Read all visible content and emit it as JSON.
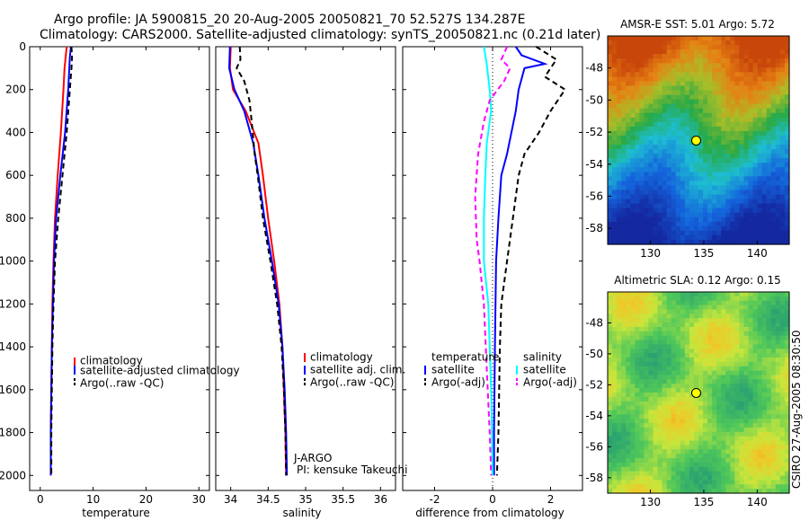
{
  "header": {
    "title_line1": "Argo profile: JA 5900815_20 20-Aug-2005 20050821_70 52.527S 134.287E",
    "title_line2": "Climatology: CARS2000. Satellite-adjusted climatology: synTS_20050821.nc (0.21d later)"
  },
  "footer": {
    "credit": "CSIRO 27-Aug-2005 08:30:50"
  },
  "colors": {
    "climatology": "#ff0000",
    "satellite": "#0000ff",
    "argo": "#000000",
    "temp_diff_adj": "#000000",
    "sal_diff_sat": "#00ffff",
    "sal_diff_argo": "#ff00ff",
    "float_marker": "#ffff00"
  },
  "chart_data": [
    {
      "type": "line",
      "name": "temperature",
      "xlabel": "temperature",
      "ylabel": "",
      "xlim": [
        -2,
        32
      ],
      "ylim": [
        0,
        2070
      ],
      "y_reversed": true,
      "xticks": [
        "0",
        "10",
        "20",
        "30"
      ],
      "yticks": [
        "0",
        "200",
        "400",
        "600",
        "800",
        "1000",
        "1200",
        "1400",
        "1600",
        "1800",
        "2000"
      ],
      "legend": [
        "climatology",
        "satellite-adjusted climatology",
        "Argo(..raw -QC)"
      ],
      "series": [
        {
          "key": "climatology",
          "style": "solid",
          "points": [
            [
              5.0,
              0
            ],
            [
              4.8,
              50
            ],
            [
              4.6,
              100
            ],
            [
              4.4,
              200
            ],
            [
              3.9,
              400
            ],
            [
              3.3,
              600
            ],
            [
              2.8,
              800
            ],
            [
              2.5,
              1000
            ],
            [
              2.3,
              1200
            ],
            [
              2.2,
              1400
            ],
            [
              2.1,
              1600
            ],
            [
              2.0,
              1800
            ],
            [
              2.0,
              2000
            ]
          ]
        },
        {
          "key": "satellite",
          "style": "solid",
          "points": [
            [
              5.8,
              0
            ],
            [
              5.6,
              50
            ],
            [
              5.5,
              100
            ],
            [
              5.3,
              200
            ],
            [
              4.7,
              400
            ],
            [
              3.8,
              600
            ],
            [
              3.0,
              800
            ],
            [
              2.6,
              1000
            ],
            [
              2.4,
              1200
            ],
            [
              2.2,
              1400
            ],
            [
              2.1,
              1600
            ],
            [
              2.0,
              1800
            ],
            [
              2.0,
              2000
            ]
          ]
        },
        {
          "key": "argo",
          "style": "dashed",
          "points": [
            [
              5.9,
              0
            ],
            [
              6.0,
              50
            ],
            [
              5.9,
              100
            ],
            [
              5.6,
              200
            ],
            [
              5.0,
              400
            ],
            [
              4.2,
              600
            ],
            [
              3.4,
              800
            ],
            [
              2.8,
              1000
            ],
            [
              2.5,
              1200
            ],
            [
              2.3,
              1400
            ],
            [
              2.2,
              1600
            ],
            [
              2.1,
              1800
            ],
            [
              2.1,
              2000
            ]
          ]
        }
      ]
    },
    {
      "type": "line",
      "name": "salinity",
      "xlabel": "salinity",
      "ylabel": "",
      "xlim": [
        33.8,
        36.2
      ],
      "ylim": [
        0,
        2070
      ],
      "y_reversed": true,
      "xticks": [
        "34",
        "34.5",
        "35",
        "35.5",
        "36"
      ],
      "legend": [
        "climatology",
        "satellite adj. clim.",
        "Argo(..raw -QC)"
      ],
      "annotation_line1": "J-ARGO",
      "annotation_line2": "PI: kensuke Takeuchi",
      "series": [
        {
          "key": "climatology",
          "style": "solid",
          "points": [
            [
              34.0,
              0
            ],
            [
              33.99,
              100
            ],
            [
              34.03,
              200
            ],
            [
              34.2,
              300
            ],
            [
              34.37,
              450
            ],
            [
              34.43,
              600
            ],
            [
              34.5,
              800
            ],
            [
              34.58,
              1000
            ],
            [
              34.65,
              1200
            ],
            [
              34.69,
              1400
            ],
            [
              34.71,
              1600
            ],
            [
              34.73,
              1800
            ],
            [
              34.74,
              2000
            ]
          ]
        },
        {
          "key": "satellite",
          "style": "solid",
          "points": [
            [
              33.99,
              0
            ],
            [
              33.98,
              100
            ],
            [
              34.05,
              200
            ],
            [
              34.18,
              300
            ],
            [
              34.3,
              450
            ],
            [
              34.37,
              600
            ],
            [
              34.45,
              800
            ],
            [
              34.55,
              1000
            ],
            [
              34.64,
              1200
            ],
            [
              34.69,
              1400
            ],
            [
              34.72,
              1600
            ],
            [
              34.74,
              1800
            ],
            [
              34.75,
              2000
            ]
          ]
        },
        {
          "key": "argo",
          "style": "dashed",
          "points": [
            [
              34.12,
              0
            ],
            [
              34.13,
              60
            ],
            [
              34.08,
              100
            ],
            [
              34.18,
              160
            ],
            [
              34.25,
              250
            ],
            [
              34.28,
              350
            ],
            [
              34.32,
              500
            ],
            [
              34.36,
              600
            ],
            [
              34.43,
              800
            ],
            [
              34.53,
              1000
            ],
            [
              34.62,
              1200
            ],
            [
              34.68,
              1400
            ],
            [
              34.71,
              1600
            ],
            [
              34.73,
              1800
            ],
            [
              34.74,
              2000
            ]
          ]
        }
      ]
    },
    {
      "type": "line",
      "name": "difference",
      "xlabel": "difference from climatology",
      "ylabel": "",
      "xlim": [
        -3.1,
        3.1
      ],
      "ylim": [
        0,
        2070
      ],
      "y_reversed": true,
      "xticks": [
        "-2",
        "0",
        "2"
      ],
      "legend_left_title": "temperature",
      "legend_right_title": "salinity",
      "legend": [
        "satellite",
        "Argo(-adj)",
        "satellite",
        "Argo(-adj)"
      ],
      "series": [
        {
          "key": "temp_sat",
          "color_key": "satellite",
          "style": "solid",
          "points": [
            [
              0.8,
              0
            ],
            [
              1.0,
              40
            ],
            [
              1.8,
              80
            ],
            [
              1.1,
              100
            ],
            [
              0.9,
              200
            ],
            [
              0.8,
              300
            ],
            [
              0.5,
              500
            ],
            [
              0.3,
              600
            ],
            [
              0.2,
              800
            ],
            [
              0.12,
              1000
            ],
            [
              0.08,
              1400
            ],
            [
              0.05,
              1800
            ],
            [
              0.05,
              2000
            ]
          ]
        },
        {
          "key": "temp_argo",
          "color_key": "temp_diff_adj",
          "style": "dashed",
          "points": [
            [
              1.5,
              0
            ],
            [
              2.2,
              60
            ],
            [
              1.8,
              140
            ],
            [
              2.5,
              200
            ],
            [
              2.0,
              300
            ],
            [
              1.6,
              400
            ],
            [
              1.1,
              500
            ],
            [
              0.9,
              600
            ],
            [
              0.7,
              800
            ],
            [
              0.5,
              1000
            ],
            [
              0.3,
              1200
            ],
            [
              0.25,
              1400
            ],
            [
              0.2,
              1800
            ],
            [
              0.15,
              2000
            ]
          ]
        },
        {
          "key": "sal_sat",
          "color_key": "sal_diff_sat",
          "style": "solid",
          "points": [
            [
              -0.3,
              0
            ],
            [
              -0.2,
              80
            ],
            [
              -0.1,
              200
            ],
            [
              -0.05,
              300
            ],
            [
              -0.2,
              450
            ],
            [
              -0.25,
              600
            ],
            [
              -0.3,
              800
            ],
            [
              -0.3,
              1000
            ],
            [
              -0.15,
              1200
            ],
            [
              -0.1,
              1400
            ],
            [
              -0.05,
              1600
            ],
            [
              -0.02,
              1800
            ],
            [
              0.0,
              2000
            ]
          ]
        },
        {
          "key": "sal_argo",
          "color_key": "sal_diff_argo",
          "style": "dashed",
          "points": [
            [
              0.5,
              0
            ],
            [
              0.3,
              60
            ],
            [
              0.6,
              100
            ],
            [
              0.4,
              160
            ],
            [
              -0.1,
              250
            ],
            [
              -0.3,
              350
            ],
            [
              -0.5,
              500
            ],
            [
              -0.6,
              700
            ],
            [
              -0.55,
              900
            ],
            [
              -0.45,
              1000
            ],
            [
              -0.3,
              1200
            ],
            [
              -0.2,
              1500
            ],
            [
              -0.1,
              1800
            ],
            [
              -0.05,
              2000
            ]
          ]
        }
      ]
    },
    {
      "type": "heatmap",
      "name": "sst_map",
      "title": "AMSR-E SST: 5.01 Argo: 5.72",
      "xlim": [
        126,
        143
      ],
      "ylim": [
        -59,
        -46
      ],
      "xticks": [
        "130",
        "135",
        "140"
      ],
      "yticks": [
        "-48",
        "-50",
        "-52",
        "-54",
        "-56",
        "-58"
      ],
      "float_position": [
        134.287,
        -52.527
      ]
    },
    {
      "type": "heatmap",
      "name": "sla_map",
      "title": "Altimetric SLA: 0.12 Argo: 0.15",
      "xlim": [
        126,
        143
      ],
      "ylim": [
        -59,
        -46
      ],
      "xticks": [
        "130",
        "135",
        "140"
      ],
      "yticks": [
        "-48",
        "-50",
        "-52",
        "-54",
        "-56",
        "-58"
      ],
      "float_position": [
        134.287,
        -52.527
      ]
    }
  ]
}
